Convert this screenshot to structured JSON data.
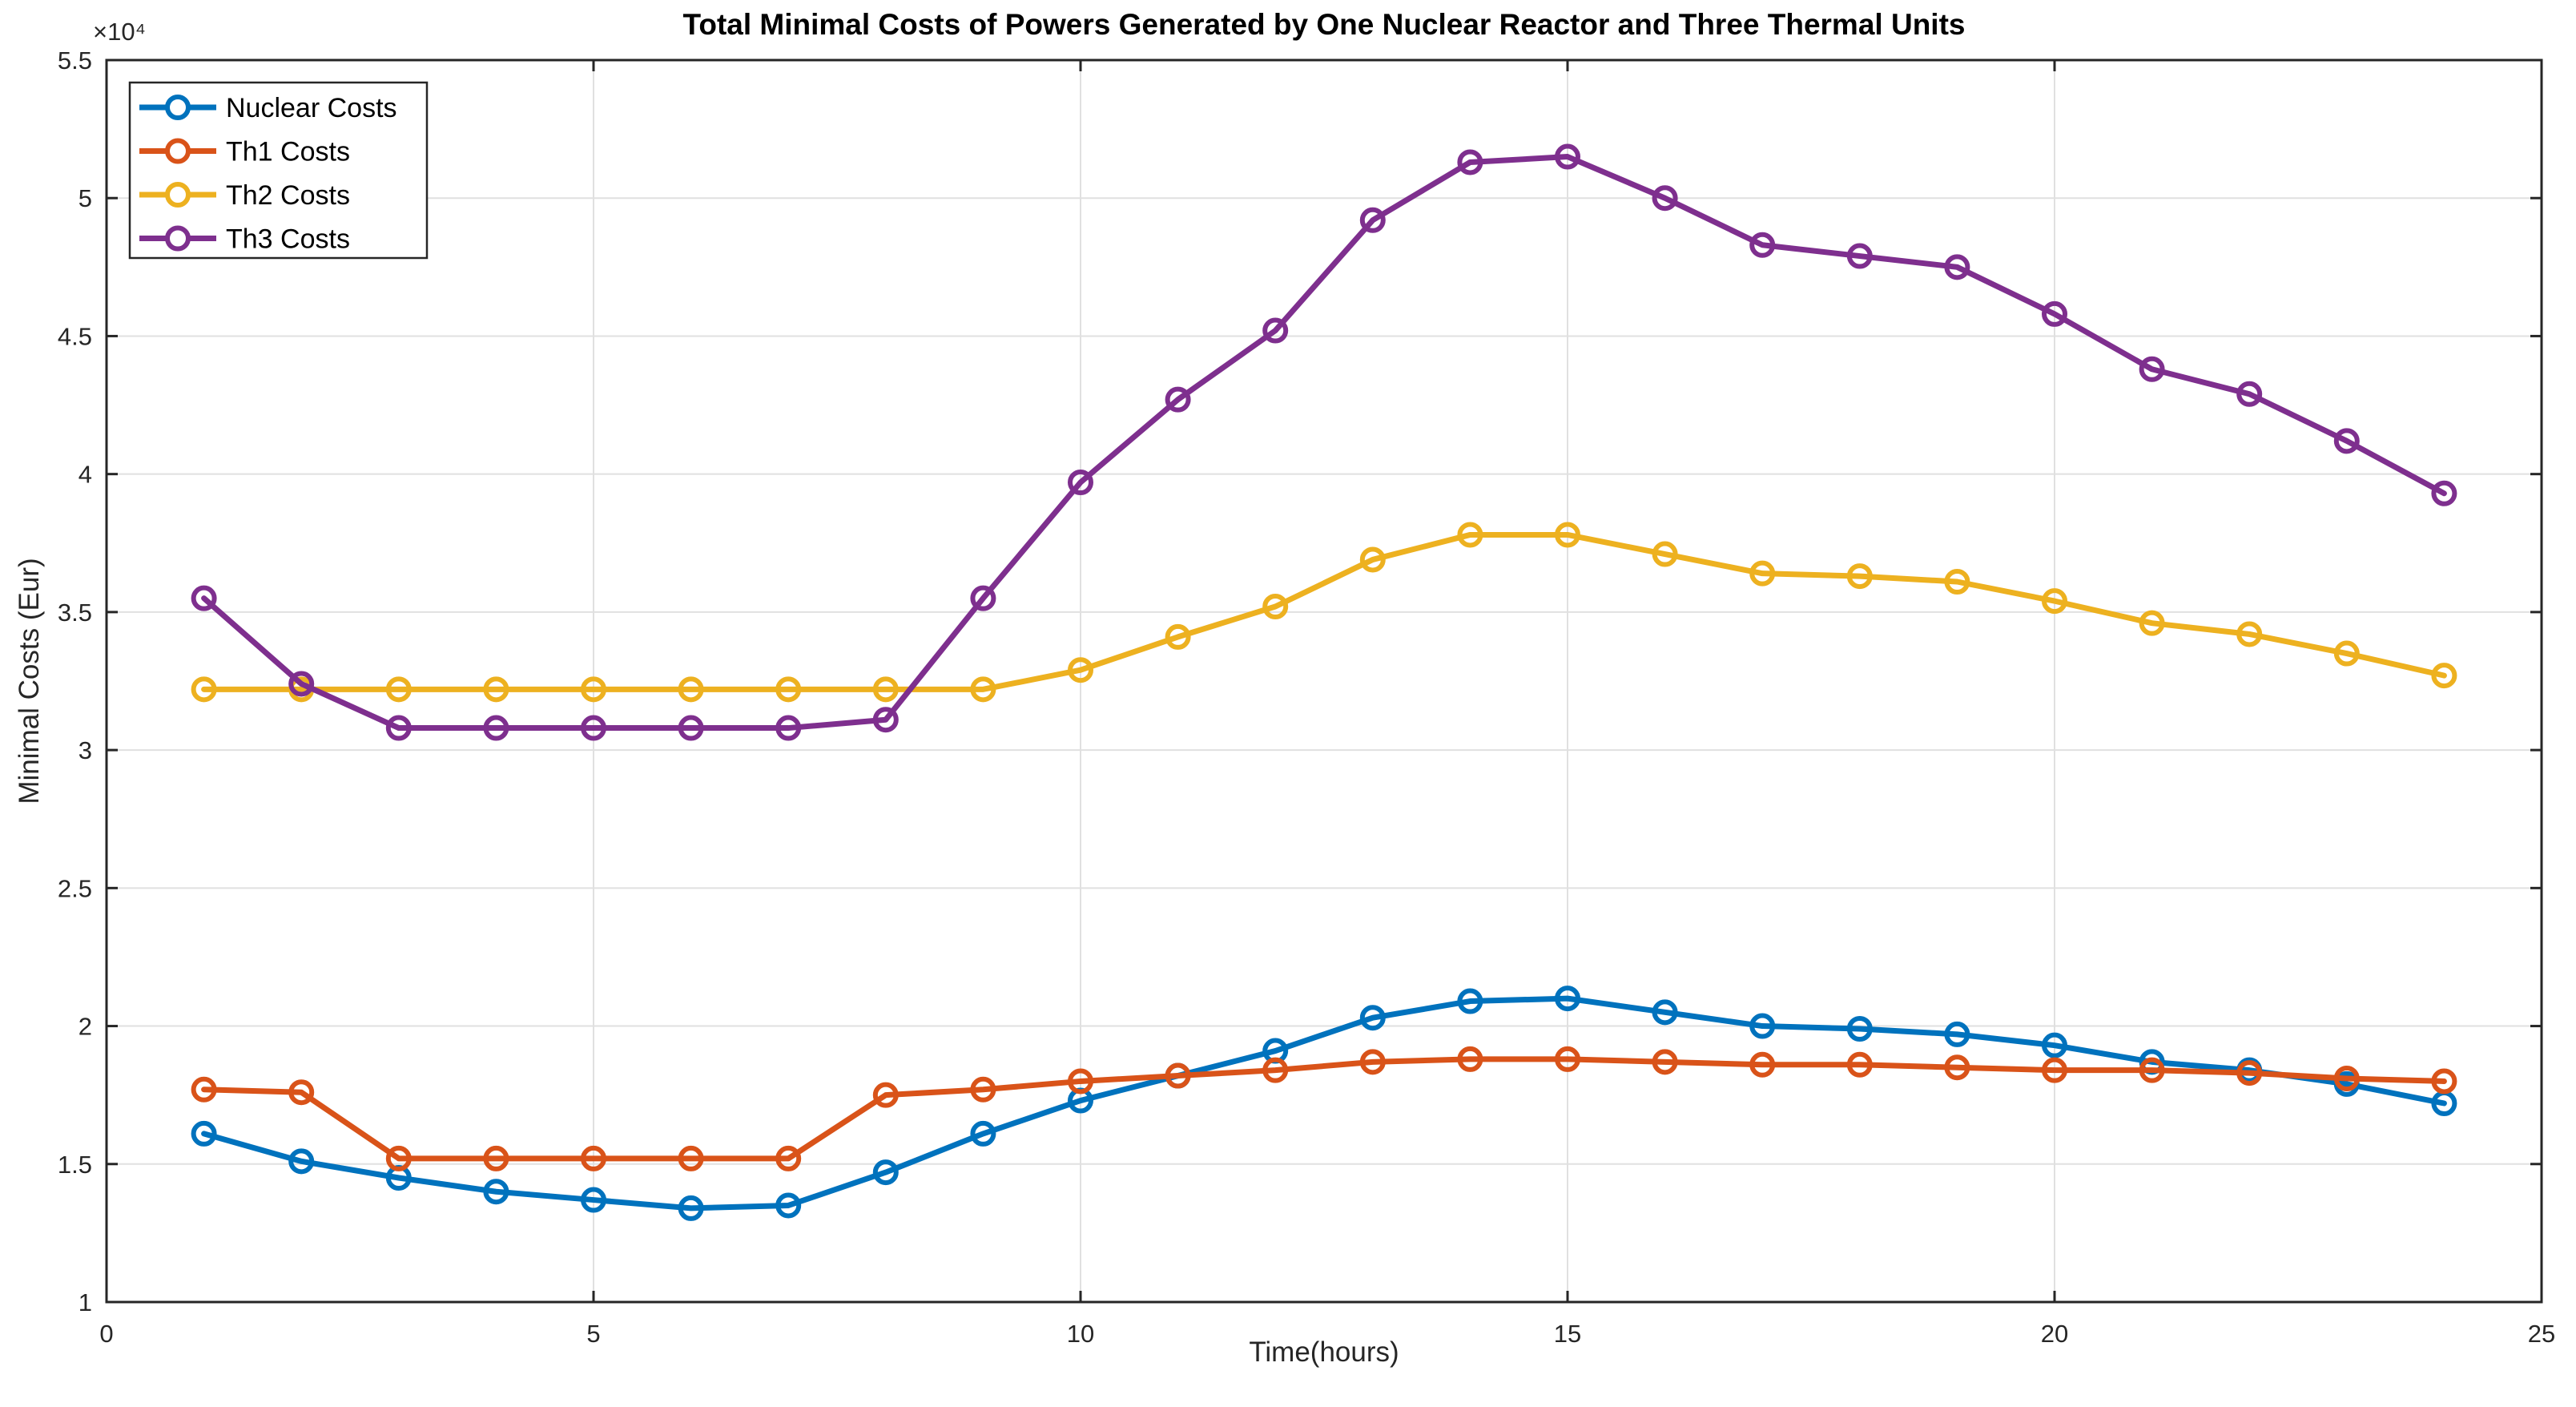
{
  "figure": {
    "title": "Total Minimal Costs of Powers Generated by One Nuclear Reactor and Three Thermal Units",
    "xlabel": "Time(hours)",
    "ylabel": "Minimal Costs (Eur)",
    "y_exponent_label": "×10⁴"
  },
  "chart_data": {
    "type": "line",
    "title": "Total Minimal Costs of Powers Generated by One Nuclear Reactor and Three Thermal Units",
    "xlabel": "Time(hours)",
    "ylabel": "Minimal Costs (Eur)",
    "y_unit_scale": "1e4 Eur",
    "y_multiplier": 10000,
    "xlim": [
      0,
      25
    ],
    "ylim": [
      1,
      5.5
    ],
    "xticks": [
      0,
      5,
      10,
      15,
      20,
      25
    ],
    "yticks": [
      1,
      1.5,
      2,
      2.5,
      3,
      3.5,
      4,
      4.5,
      5,
      5.5
    ],
    "grid": true,
    "legend_position": "top-left",
    "marker": "o",
    "x": [
      1,
      2,
      3,
      4,
      5,
      6,
      7,
      8,
      9,
      10,
      11,
      12,
      13,
      14,
      15,
      16,
      17,
      18,
      19,
      20,
      21,
      22,
      23,
      24
    ],
    "series": [
      {
        "name": "Nuclear Costs",
        "color": "#0072BD",
        "values": [
          1.61,
          1.51,
          1.45,
          1.4,
          1.37,
          1.34,
          1.35,
          1.47,
          1.61,
          1.73,
          1.82,
          1.91,
          2.03,
          2.09,
          2.1,
          2.05,
          2.0,
          1.99,
          1.97,
          1.93,
          1.87,
          1.84,
          1.79,
          1.72
        ]
      },
      {
        "name": "Th1 Costs",
        "color": "#D95319",
        "values": [
          1.77,
          1.76,
          1.52,
          1.52,
          1.52,
          1.52,
          1.52,
          1.75,
          1.77,
          1.8,
          1.82,
          1.84,
          1.87,
          1.88,
          1.88,
          1.87,
          1.86,
          1.86,
          1.85,
          1.84,
          1.84,
          1.83,
          1.81,
          1.8
        ]
      },
      {
        "name": "Th2 Costs",
        "color": "#EDB120",
        "values": [
          3.22,
          3.22,
          3.22,
          3.22,
          3.22,
          3.22,
          3.22,
          3.22,
          3.22,
          3.29,
          3.41,
          3.52,
          3.69,
          3.78,
          3.78,
          3.71,
          3.64,
          3.63,
          3.61,
          3.54,
          3.46,
          3.42,
          3.35,
          3.27
        ]
      },
      {
        "name": "Th3 Costs",
        "color": "#7E2F8E",
        "values": [
          3.55,
          3.24,
          3.08,
          3.08,
          3.08,
          3.08,
          3.08,
          3.11,
          3.55,
          3.97,
          4.27,
          4.52,
          4.92,
          5.13,
          5.15,
          5.0,
          4.83,
          4.79,
          4.75,
          4.58,
          4.38,
          4.29,
          4.12,
          3.93
        ]
      }
    ]
  },
  "legend": {
    "entries": [
      "Nuclear Costs",
      "Th1 Costs",
      "Th2 Costs",
      "Th3 Costs"
    ]
  },
  "colors": {
    "background": "#ffffff",
    "axis": "#262626",
    "grid": "#e0e0e0",
    "title_text": "#000000",
    "legend_border": "#262626",
    "series_blue": "#0072BD",
    "series_orange": "#D95319",
    "series_yellow": "#EDB120",
    "series_purple": "#7E2F8E"
  }
}
